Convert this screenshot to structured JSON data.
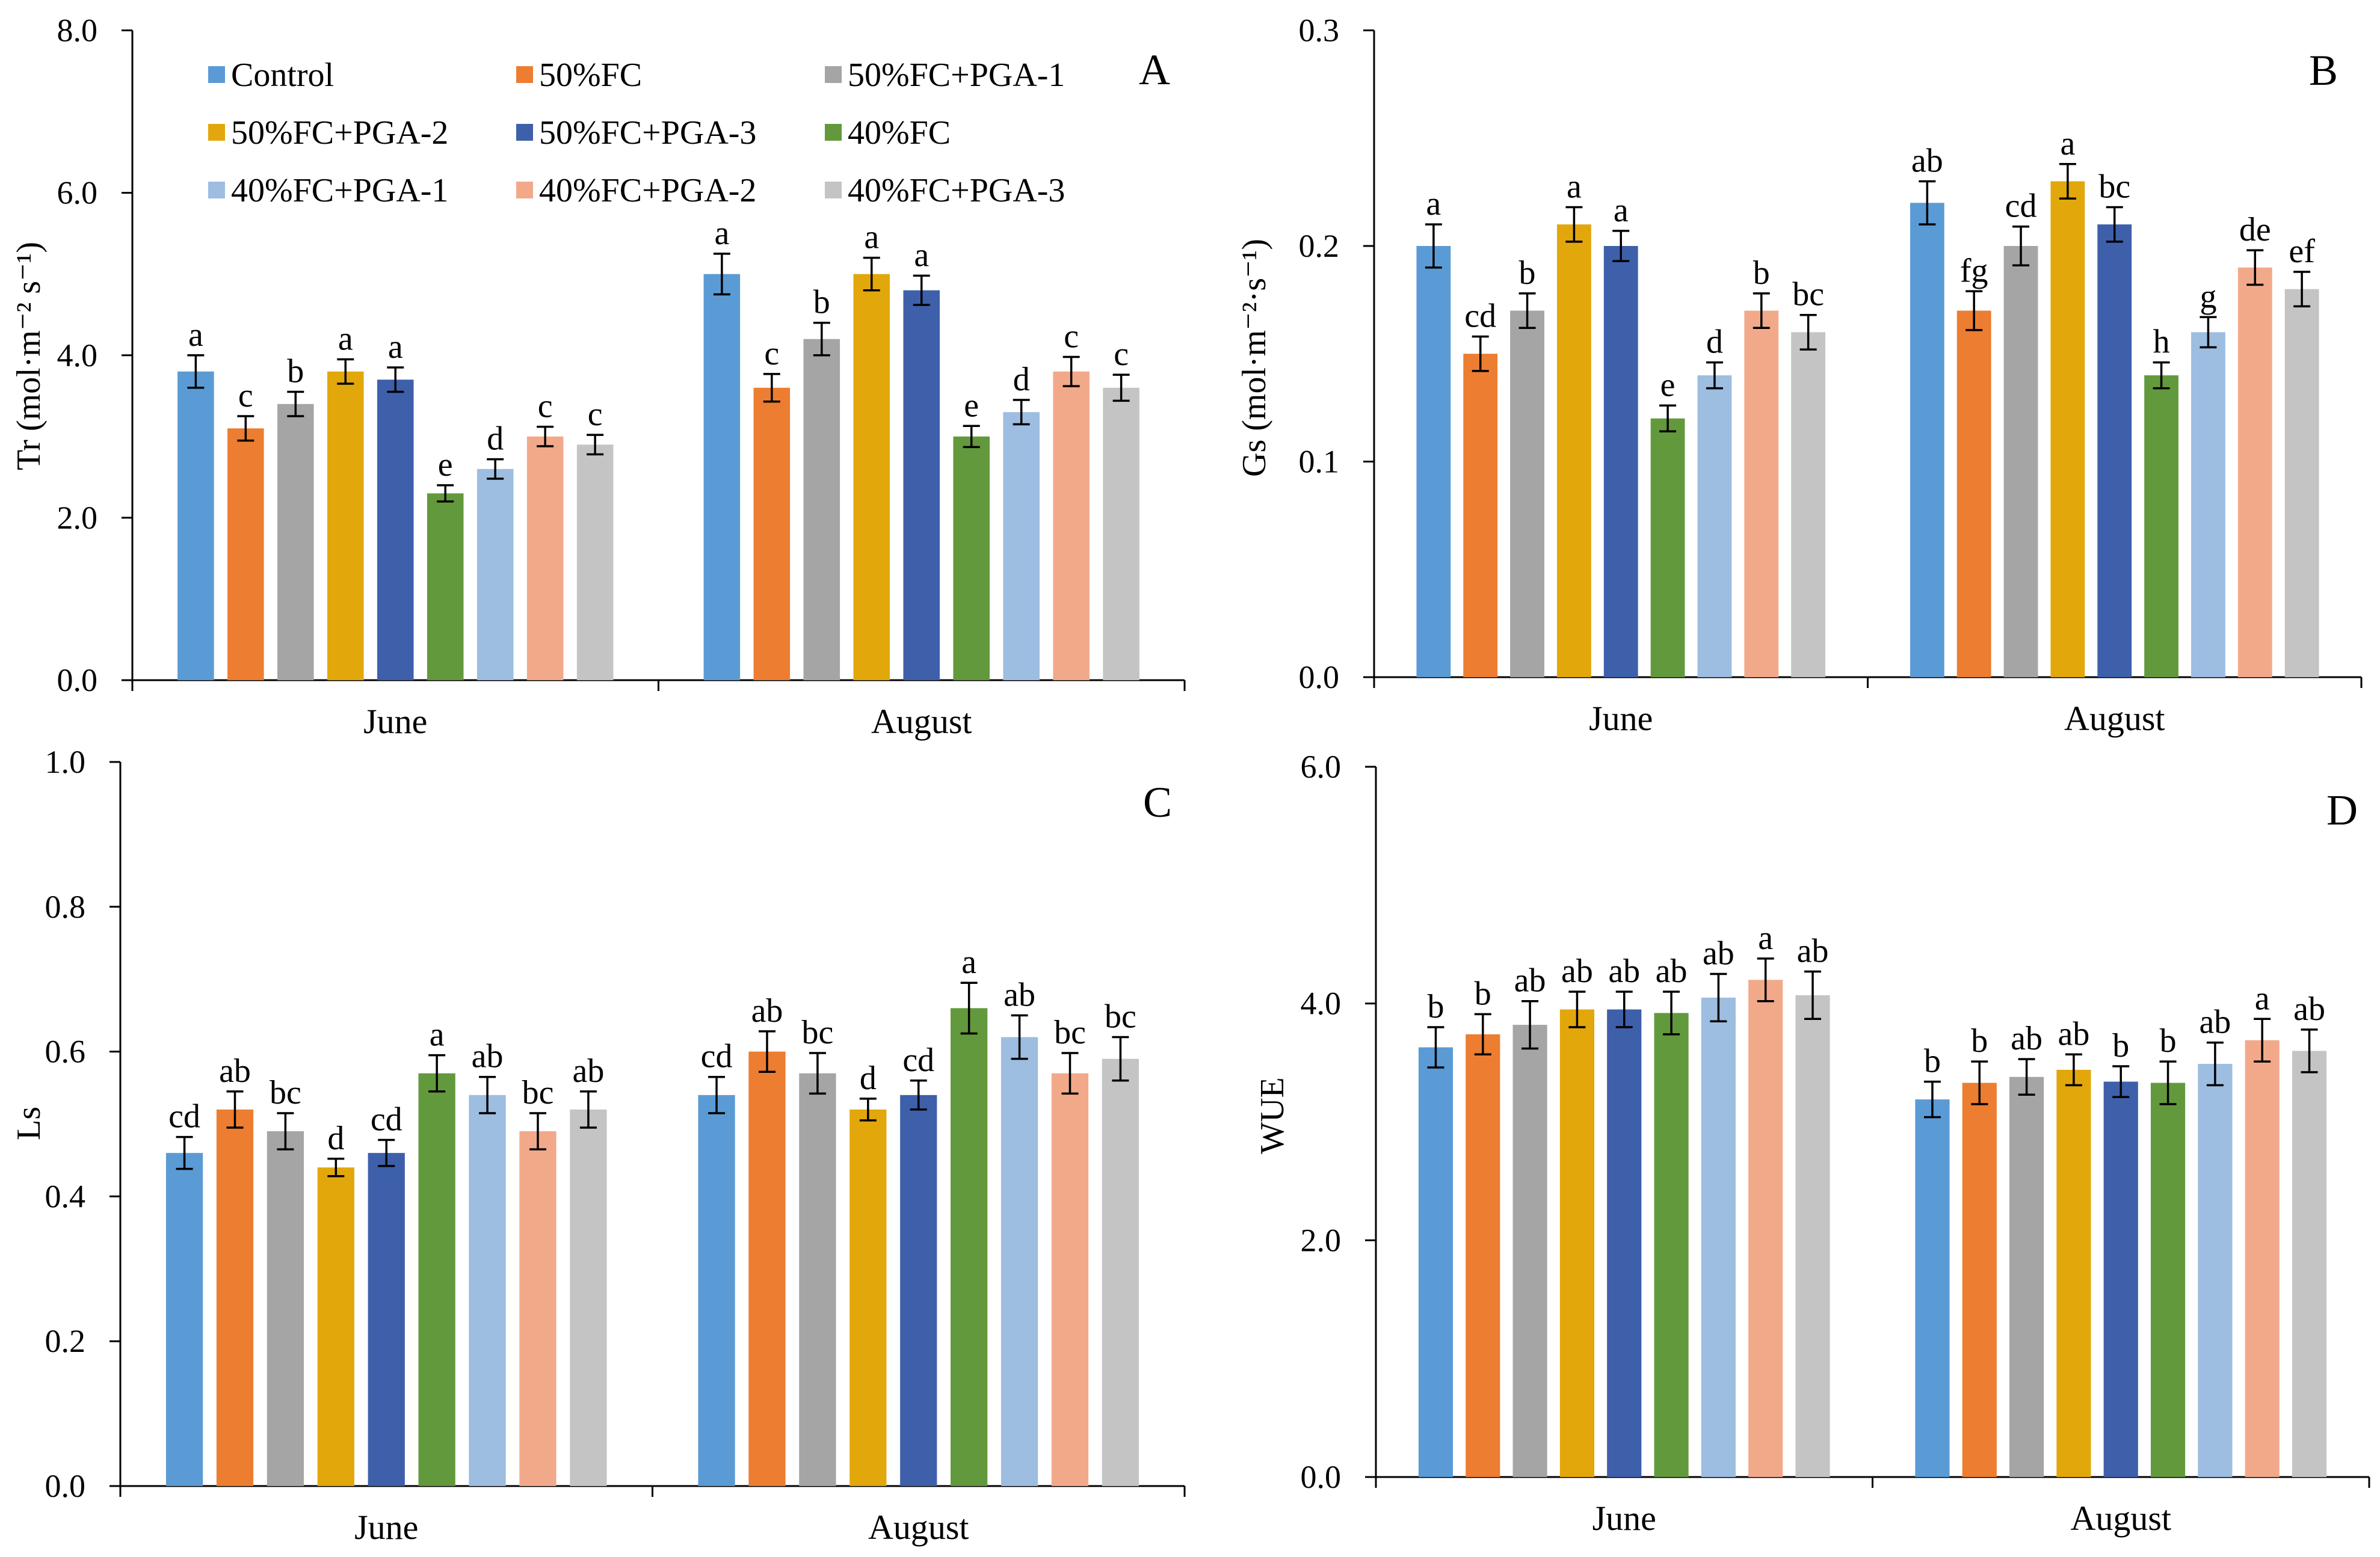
{
  "chart_data": [
    {
      "panel_label": "A",
      "type": "bar",
      "title": "",
      "xlabel": "",
      "ylabel": "Tr (mol·m⁻² s⁻¹)",
      "ylim": [
        0,
        8
      ],
      "yticks": [
        "0.0",
        "2.0",
        "4.0",
        "6.0",
        "8.0"
      ],
      "grid": false,
      "legend": "top",
      "categories": [
        "June",
        "August"
      ],
      "series": [
        {
          "name": "Control",
          "color": "#5B9BD5",
          "values": [
            3.8,
            5.0
          ],
          "errors": [
            0.2,
            0.25
          ],
          "letters": [
            "a",
            "a"
          ]
        },
        {
          "name": "50%FC",
          "color": "#ED7D31",
          "values": [
            3.1,
            3.6
          ],
          "errors": [
            0.15,
            0.17
          ],
          "letters": [
            "c",
            "c"
          ]
        },
        {
          "name": "50%FC+PGA-1",
          "color": "#A5A5A5",
          "values": [
            3.4,
            4.2
          ],
          "errors": [
            0.15,
            0.2
          ],
          "letters": [
            "b",
            "b"
          ]
        },
        {
          "name": "50%FC+PGA-2",
          "color": "#E2A70B",
          "values": [
            3.8,
            5.0
          ],
          "errors": [
            0.15,
            0.2
          ],
          "letters": [
            "a",
            "a"
          ]
        },
        {
          "name": "50%FC+PGA-3",
          "color": "#3E60AB",
          "values": [
            3.7,
            4.8
          ],
          "errors": [
            0.15,
            0.18
          ],
          "letters": [
            "a",
            "a"
          ]
        },
        {
          "name": "40%FC",
          "color": "#63993D",
          "values": [
            2.3,
            3.0
          ],
          "errors": [
            0.1,
            0.13
          ],
          "letters": [
            "e",
            "e"
          ]
        },
        {
          "name": "40%FC+PGA-1",
          "color": "#9DBDE1",
          "values": [
            2.6,
            3.3
          ],
          "errors": [
            0.12,
            0.15
          ],
          "letters": [
            "d",
            "d"
          ]
        },
        {
          "name": "40%FC+PGA-2",
          "color": "#F2A98A",
          "values": [
            3.0,
            3.8
          ],
          "errors": [
            0.12,
            0.18
          ],
          "letters": [
            "c",
            "c"
          ]
        },
        {
          "name": "40%FC+PGA-3",
          "color": "#C4C4C4",
          "values": [
            2.9,
            3.6
          ],
          "errors": [
            0.12,
            0.16
          ],
          "letters": [
            "c",
            "c"
          ]
        }
      ]
    },
    {
      "panel_label": "B",
      "type": "bar",
      "title": "",
      "xlabel": "",
      "ylabel": "Gs (mol·m⁻²·s⁻¹)",
      "ylim": [
        0,
        0.3
      ],
      "yticks": [
        "0.0",
        "0.1",
        "0.2",
        "0.3"
      ],
      "grid": false,
      "categories": [
        "June",
        "August"
      ],
      "series": [
        {
          "name": "Control",
          "color": "#5B9BD5",
          "values": [
            0.2,
            0.22
          ],
          "errors": [
            0.01,
            0.01
          ],
          "letters": [
            "a",
            "ab"
          ]
        },
        {
          "name": "50%FC",
          "color": "#ED7D31",
          "values": [
            0.15,
            0.17
          ],
          "errors": [
            0.008,
            0.009
          ],
          "letters": [
            "cd",
            "fg"
          ]
        },
        {
          "name": "50%FC+PGA-1",
          "color": "#A5A5A5",
          "values": [
            0.17,
            0.2
          ],
          "errors": [
            0.008,
            0.009
          ],
          "letters": [
            "b",
            "cd"
          ]
        },
        {
          "name": "50%FC+PGA-2",
          "color": "#E2A70B",
          "values": [
            0.21,
            0.23
          ],
          "errors": [
            0.008,
            0.008
          ],
          "letters": [
            "a",
            "a"
          ]
        },
        {
          "name": "50%FC+PGA-3",
          "color": "#3E60AB",
          "values": [
            0.2,
            0.21
          ],
          "errors": [
            0.007,
            0.008
          ],
          "letters": [
            "a",
            "bc"
          ]
        },
        {
          "name": "40%FC",
          "color": "#63993D",
          "values": [
            0.12,
            0.14
          ],
          "errors": [
            0.006,
            0.006
          ],
          "letters": [
            "e",
            "h"
          ]
        },
        {
          "name": "40%FC+PGA-1",
          "color": "#9DBDE1",
          "values": [
            0.14,
            0.16
          ],
          "errors": [
            0.006,
            0.007
          ],
          "letters": [
            "d",
            "g"
          ]
        },
        {
          "name": "40%FC+PGA-2",
          "color": "#F2A98A",
          "values": [
            0.17,
            0.19
          ],
          "errors": [
            0.008,
            0.008
          ],
          "letters": [
            "b",
            "de"
          ]
        },
        {
          "name": "40%FC+PGA-3",
          "color": "#C4C4C4",
          "values": [
            0.16,
            0.18
          ],
          "errors": [
            0.008,
            0.008
          ],
          "letters": [
            "bc",
            "ef"
          ]
        }
      ]
    },
    {
      "panel_label": "C",
      "type": "bar",
      "title": "",
      "xlabel": "",
      "ylabel": "Ls",
      "ylim": [
        0,
        1.0
      ],
      "yticks": [
        "0.0",
        "0.2",
        "0.4",
        "0.6",
        "0.8",
        "1.0"
      ],
      "grid": false,
      "categories": [
        "June",
        "August"
      ],
      "series": [
        {
          "name": "Control",
          "color": "#5B9BD5",
          "values": [
            0.46,
            0.54
          ],
          "errors": [
            0.022,
            0.025
          ],
          "letters": [
            "cd",
            "cd"
          ]
        },
        {
          "name": "50%FC",
          "color": "#ED7D31",
          "values": [
            0.52,
            0.6
          ],
          "errors": [
            0.025,
            0.028
          ],
          "letters": [
            "ab",
            "ab"
          ]
        },
        {
          "name": "50%FC+PGA-1",
          "color": "#A5A5A5",
          "values": [
            0.49,
            0.57
          ],
          "errors": [
            0.025,
            0.028
          ],
          "letters": [
            "bc",
            "bc"
          ]
        },
        {
          "name": "50%FC+PGA-2",
          "color": "#E2A70B",
          "values": [
            0.44,
            0.52
          ],
          "errors": [
            0.012,
            0.015
          ],
          "letters": [
            "d",
            "d"
          ]
        },
        {
          "name": "50%FC+PGA-3",
          "color": "#3E60AB",
          "values": [
            0.46,
            0.54
          ],
          "errors": [
            0.018,
            0.02
          ],
          "letters": [
            "cd",
            "cd"
          ]
        },
        {
          "name": "40%FC",
          "color": "#63993D",
          "values": [
            0.57,
            0.66
          ],
          "errors": [
            0.025,
            0.035
          ],
          "letters": [
            "a",
            "a"
          ]
        },
        {
          "name": "40%FC+PGA-1",
          "color": "#9DBDE1",
          "values": [
            0.54,
            0.62
          ],
          "errors": [
            0.025,
            0.03
          ],
          "letters": [
            "ab",
            "ab"
          ]
        },
        {
          "name": "40%FC+PGA-2",
          "color": "#F2A98A",
          "values": [
            0.49,
            0.57
          ],
          "errors": [
            0.025,
            0.028
          ],
          "letters": [
            "bc",
            "bc"
          ]
        },
        {
          "name": "40%FC+PGA-3",
          "color": "#C4C4C4",
          "values": [
            0.52,
            0.59
          ],
          "errors": [
            0.025,
            0.03
          ],
          "letters": [
            "ab",
            "bc"
          ]
        }
      ]
    },
    {
      "panel_label": "D",
      "type": "bar",
      "title": "",
      "xlabel": "",
      "ylabel": "WUE",
      "ylim": [
        0,
        6.0
      ],
      "yticks": [
        "0.0",
        "2.0",
        "4.0",
        "6.0"
      ],
      "grid": false,
      "categories": [
        "June",
        "August"
      ],
      "series": [
        {
          "name": "Control",
          "color": "#5B9BD5",
          "values": [
            3.63,
            3.19
          ],
          "errors": [
            0.17,
            0.15
          ],
          "letters": [
            "b",
            "b"
          ]
        },
        {
          "name": "50%FC",
          "color": "#ED7D31",
          "values": [
            3.74,
            3.33
          ],
          "errors": [
            0.17,
            0.18
          ],
          "letters": [
            "b",
            "b"
          ]
        },
        {
          "name": "50%FC+PGA-1",
          "color": "#A5A5A5",
          "values": [
            3.82,
            3.38
          ],
          "errors": [
            0.2,
            0.15
          ],
          "letters": [
            "ab",
            "ab"
          ]
        },
        {
          "name": "50%FC+PGA-2",
          "color": "#E2A70B",
          "values": [
            3.95,
            3.44
          ],
          "errors": [
            0.15,
            0.13
          ],
          "letters": [
            "ab",
            "ab"
          ]
        },
        {
          "name": "50%FC+PGA-3",
          "color": "#3E60AB",
          "values": [
            3.95,
            3.34
          ],
          "errors": [
            0.15,
            0.13
          ],
          "letters": [
            "ab",
            "b"
          ]
        },
        {
          "name": "40%FC",
          "color": "#63993D",
          "values": [
            3.92,
            3.33
          ],
          "errors": [
            0.18,
            0.18
          ],
          "letters": [
            "ab",
            "b"
          ]
        },
        {
          "name": "40%FC+PGA-1",
          "color": "#9DBDE1",
          "values": [
            4.05,
            3.49
          ],
          "errors": [
            0.2,
            0.18
          ],
          "letters": [
            "ab",
            "ab"
          ]
        },
        {
          "name": "40%FC+PGA-2",
          "color": "#F2A98A",
          "values": [
            4.2,
            3.69
          ],
          "errors": [
            0.18,
            0.18
          ],
          "letters": [
            "a",
            "a"
          ]
        },
        {
          "name": "40%FC+PGA-3",
          "color": "#C4C4C4",
          "values": [
            4.07,
            3.6
          ],
          "errors": [
            0.2,
            0.18
          ],
          "letters": [
            "ab",
            "ab"
          ]
        }
      ]
    }
  ]
}
